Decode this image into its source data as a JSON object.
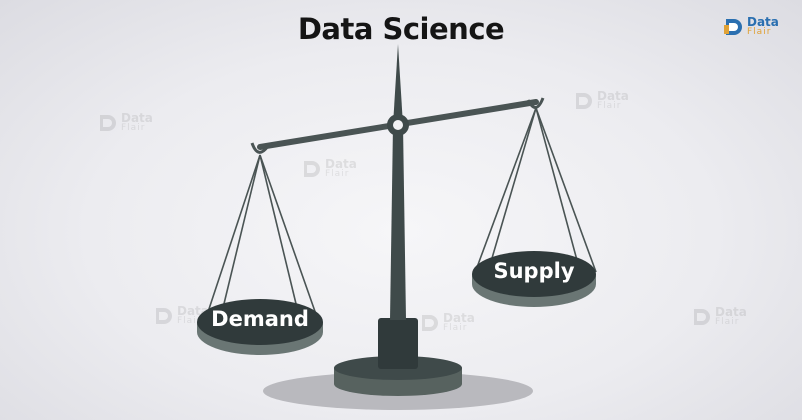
{
  "title": "Data Science",
  "left_pan_label": "Demand",
  "right_pan_label": "Supply",
  "brand": {
    "line1": "Data",
    "line2": "Flair"
  },
  "colors": {
    "scale_dark": "#3f4a4a",
    "scale_mid": "#57625f",
    "pan_top": "#303a3b",
    "pan_rim": "#6a7674",
    "shadow": "#b9b9be",
    "brand_blue": "#2a6fb0",
    "brand_orange": "#e0a236"
  },
  "icons": [
    "dataflair-logo-icon",
    "dataflair-watermark-icon"
  ]
}
